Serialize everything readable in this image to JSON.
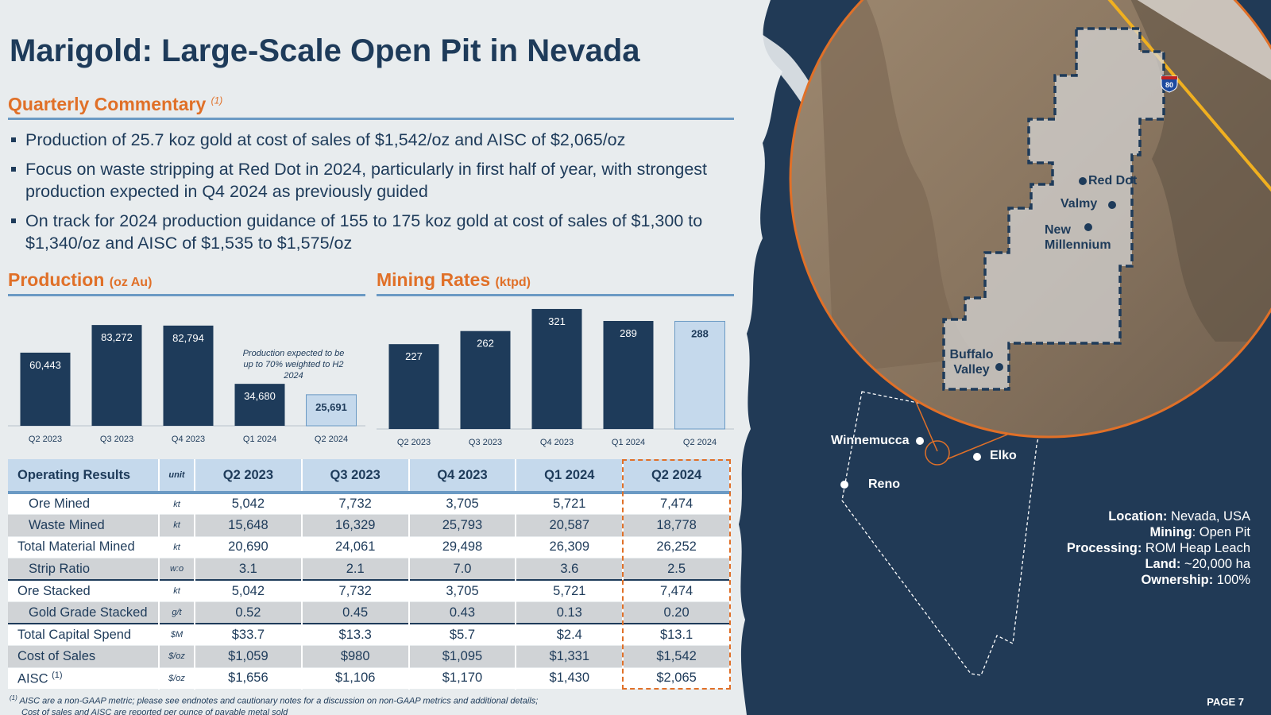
{
  "title": "Marigold: Large-Scale Open Pit in Nevada",
  "commentary": {
    "heading": "Quarterly Commentary",
    "footnote_marker": "(1)",
    "bullets": [
      "Production of 25.7 koz gold at cost of sales of $1,542/oz and AISC of $2,065/oz",
      "Focus on waste stripping at Red Dot in 2024, particularly in first half of year, with strongest production expected in Q4 2024 as previously guided",
      "On track for 2024 production guidance of 155 to 175 koz gold at cost of sales of $1,300 to $1,340/oz and AISC of $1,535 to $1,575/oz"
    ]
  },
  "production": {
    "heading": "Production",
    "unit": "(oz Au)",
    "note": "Production expected to be up to 70% weighted to H2 2024"
  },
  "mining": {
    "heading": "Mining Rates",
    "unit": "(ktpd)"
  },
  "chart_data": [
    {
      "type": "bar",
      "title": "Production",
      "categories": [
        "Q2 2023",
        "Q3 2023",
        "Q4 2023",
        "Q1 2024",
        "Q2 2024"
      ],
      "values": [
        60443,
        83272,
        82794,
        34680,
        25691
      ],
      "labels": [
        "60,443",
        "83,272",
        "82,794",
        "34,680",
        "25,691"
      ],
      "colors": [
        "#1e3b5a",
        "#1e3b5a",
        "#1e3b5a",
        "#1e3b5a",
        "#c5d9ec"
      ],
      "ylim": [
        0,
        105000
      ]
    },
    {
      "type": "bar",
      "title": "Mining Rates",
      "categories": [
        "Q2 2023",
        "Q3 2023",
        "Q4 2023",
        "Q1 2024",
        "Q2 2024"
      ],
      "values": [
        227,
        262,
        321,
        289,
        288
      ],
      "labels": [
        "227",
        "262",
        "321",
        "289",
        "288"
      ],
      "colors": [
        "#1e3b5a",
        "#1e3b5a",
        "#1e3b5a",
        "#1e3b5a",
        "#c5d9ec"
      ],
      "ylim": [
        0,
        340
      ]
    }
  ],
  "table": {
    "headers": [
      "Operating Results",
      "unit",
      "Q2 2023",
      "Q3 2023",
      "Q4 2023",
      "Q1 2024",
      "Q2 2024"
    ],
    "rows": [
      {
        "label": "Ore Mined",
        "unit": "kt",
        "values": [
          "5,042",
          "7,732",
          "3,705",
          "5,721",
          "7,474"
        ]
      },
      {
        "label": "Waste Mined",
        "unit": "kt",
        "values": [
          "15,648",
          "16,329",
          "25,793",
          "20,587",
          "18,778"
        ]
      },
      {
        "label": "Total Material Mined",
        "unit": "kt",
        "values": [
          "20,690",
          "24,061",
          "29,498",
          "26,309",
          "26,252"
        ]
      },
      {
        "label": "Strip Ratio",
        "unit": "w:o",
        "values": [
          "3.1",
          "2.1",
          "7.0",
          "3.6",
          "2.5"
        ]
      },
      {
        "label": "Ore Stacked",
        "unit": "kt",
        "values": [
          "5,042",
          "7,732",
          "3,705",
          "5,721",
          "7,474"
        ]
      },
      {
        "label": "Gold Grade Stacked",
        "unit": "g/t",
        "values": [
          "0.52",
          "0.45",
          "0.43",
          "0.13",
          "0.20"
        ]
      },
      {
        "label": "Total Capital Spend",
        "unit": "$M",
        "values": [
          "$33.7",
          "$13.3",
          "$5.7",
          "$2.4",
          "$13.1"
        ]
      },
      {
        "label": "Cost of Sales",
        "unit": "$/oz",
        "values": [
          "$1,059",
          "$980",
          "$1,095",
          "$1,331",
          "$1,542"
        ]
      },
      {
        "label": "AISC",
        "label_sup": "(1)",
        "unit": "$/oz",
        "values": [
          "$1,656",
          "$1,106",
          "$1,170",
          "$1,430",
          "$2,065"
        ]
      }
    ]
  },
  "footnote": {
    "marker": "(1)",
    "line1": "AISC are a non-GAAP metric; please see endnotes and cautionary notes for a discussion on non-GAAP metrics and additional details;",
    "line2": "Cost of sales and AISC are reported per ounce of payable metal sold"
  },
  "map": {
    "cities": [
      "Winnemucca",
      "Elko",
      "Reno"
    ],
    "highway": "80",
    "sites": [
      "Red Dot",
      "Valmy",
      "New Millennium",
      "Buffalo Valley"
    ]
  },
  "facts": [
    {
      "key": "Location:",
      "value": " Nevada, USA"
    },
    {
      "key": "Mining",
      "value": ": Open Pit"
    },
    {
      "key": "Processing:",
      "value": " ROM Heap Leach"
    },
    {
      "key": "Land:",
      "value": " ~20,000 ha"
    },
    {
      "key": "Ownership:",
      "value": " 100%"
    }
  ],
  "page": "PAGE 7"
}
